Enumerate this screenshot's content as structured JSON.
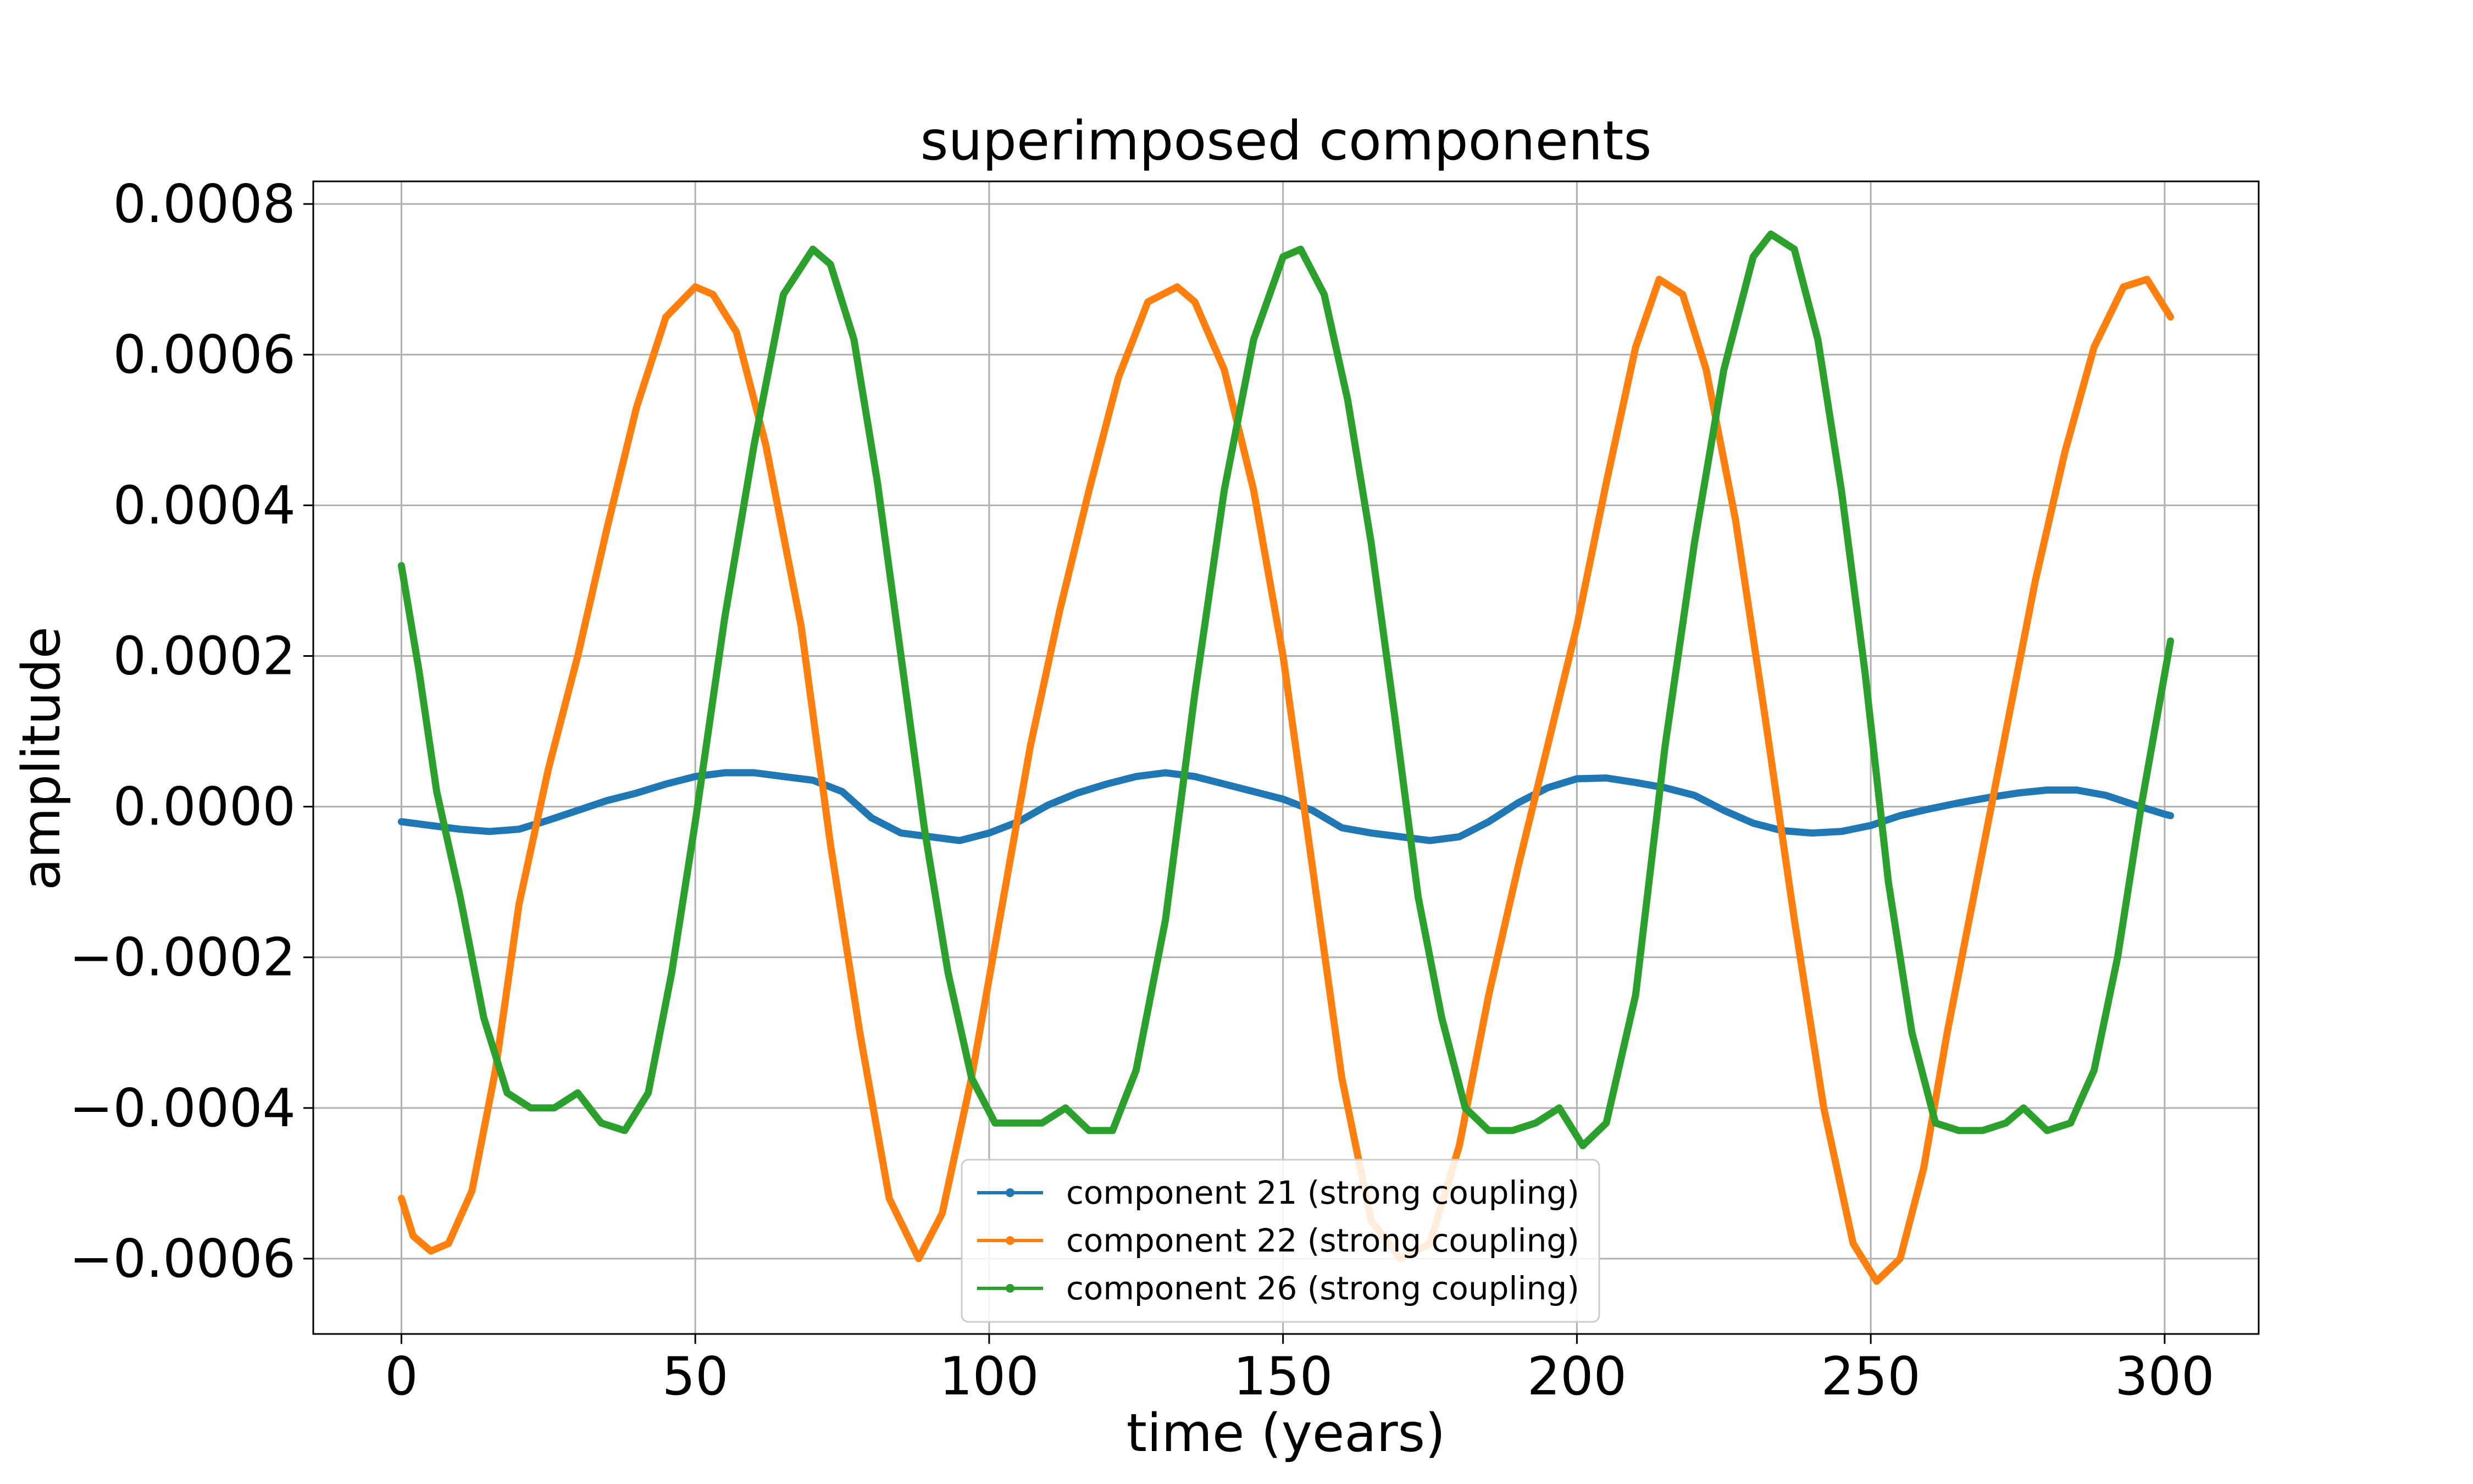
{
  "chart_data": {
    "type": "line",
    "title": "superimposed components",
    "xlabel": "time (years)",
    "ylabel": "amplitude",
    "xlim": [
      -15,
      316
    ],
    "ylim": [
      -0.0007,
      0.00083
    ],
    "xticks": [
      0,
      50,
      100,
      150,
      200,
      250,
      300
    ],
    "xtick_labels": [
      "0",
      "50",
      "100",
      "150",
      "200",
      "250",
      "300"
    ],
    "yticks": [
      -0.0006,
      -0.0004,
      -0.0002,
      0.0,
      0.0002,
      0.0004,
      0.0006,
      0.0008
    ],
    "ytick_labels": [
      "−0.0006",
      "−0.0004",
      "−0.0002",
      "0.0000",
      "0.0002",
      "0.0004",
      "0.0006",
      "0.0008"
    ],
    "grid": true,
    "legend_position": "lower-center",
    "series": [
      {
        "name": "component 21 (strong coupling)",
        "color": "#1f77b4",
        "x": [
          0,
          5,
          10,
          15,
          20,
          25,
          30,
          35,
          40,
          45,
          50,
          55,
          60,
          65,
          70,
          75,
          80,
          85,
          90,
          95,
          100,
          105,
          110,
          115,
          120,
          125,
          130,
          135,
          140,
          145,
          150,
          155,
          160,
          165,
          170,
          175,
          180,
          185,
          190,
          195,
          200,
          205,
          210,
          215,
          220,
          225,
          230,
          235,
          240,
          245,
          250,
          255,
          260,
          265,
          270,
          275,
          280,
          285,
          290,
          295,
          300,
          301
        ],
        "y": [
          -2e-05,
          -2.5e-05,
          -3e-05,
          -3.3e-05,
          -3e-05,
          -1.8e-05,
          -5e-06,
          8e-06,
          1.8e-05,
          3e-05,
          4e-05,
          4.5e-05,
          4.5e-05,
          4e-05,
          3.5e-05,
          2e-05,
          -1.5e-05,
          -3.5e-05,
          -4e-05,
          -4.5e-05,
          -3.5e-05,
          -2e-05,
          2e-06,
          1.8e-05,
          3e-05,
          4e-05,
          4.5e-05,
          4e-05,
          3e-05,
          2e-05,
          1e-05,
          -5e-06,
          -2.8e-05,
          -3.5e-05,
          -4e-05,
          -4.5e-05,
          -4e-05,
          -2e-05,
          5e-06,
          2.5e-05,
          3.7e-05,
          3.8e-05,
          3.2e-05,
          2.5e-05,
          1.5e-05,
          -5e-06,
          -2.2e-05,
          -3.2e-05,
          -3.5e-05,
          -3.3e-05,
          -2.5e-05,
          -1.2e-05,
          -3e-06,
          5e-06,
          1.2e-05,
          1.8e-05,
          2.2e-05,
          2.2e-05,
          1.5e-05,
          2e-06,
          -1e-05,
          -1.2e-05
        ]
      },
      {
        "name": "component 22 (strong coupling)",
        "color": "#ff7f0e",
        "x": [
          0,
          2,
          5,
          8,
          12,
          16,
          20,
          25,
          30,
          35,
          40,
          45,
          50,
          53,
          57,
          62,
          68,
          73,
          78,
          83,
          88,
          92,
          97,
          102,
          107,
          112,
          117,
          122,
          127,
          132,
          135,
          140,
          145,
          150,
          155,
          160,
          165,
          170,
          175,
          180,
          185,
          190,
          195,
          200,
          205,
          210,
          214,
          218,
          222,
          227,
          232,
          237,
          242,
          247,
          251,
          255,
          259,
          263,
          268,
          273,
          278,
          283,
          288,
          293,
          297,
          301
        ],
        "y": [
          -0.00052,
          -0.00057,
          -0.00059,
          -0.00058,
          -0.00051,
          -0.00035,
          -0.00013,
          5e-05,
          0.0002,
          0.00037,
          0.00053,
          0.00065,
          0.00069,
          0.00068,
          0.00063,
          0.00048,
          0.00024,
          -5e-05,
          -0.0003,
          -0.00052,
          -0.0006,
          -0.00054,
          -0.00036,
          -0.00014,
          8e-05,
          0.00026,
          0.00042,
          0.00057,
          0.00067,
          0.00069,
          0.00067,
          0.00058,
          0.00042,
          0.0002,
          -8e-05,
          -0.00036,
          -0.00055,
          -0.0006,
          -0.00058,
          -0.00045,
          -0.00025,
          -8e-05,
          8e-05,
          0.00024,
          0.00043,
          0.00061,
          0.0007,
          0.00068,
          0.00058,
          0.00038,
          0.00012,
          -0.00015,
          -0.0004,
          -0.00058,
          -0.00063,
          -0.0006,
          -0.00048,
          -0.0003,
          -0.0001,
          0.0001,
          0.0003,
          0.00047,
          0.00061,
          0.00069,
          0.0007,
          0.00065
        ]
      },
      {
        "name": "component 26 (strong coupling)",
        "color": "#2ca02c",
        "x": [
          0,
          3,
          6,
          10,
          14,
          18,
          22,
          26,
          30,
          34,
          38,
          42,
          46,
          50,
          55,
          60,
          65,
          70,
          73,
          77,
          81,
          85,
          89,
          93,
          97,
          101,
          105,
          109,
          113,
          117,
          121,
          125,
          130,
          135,
          140,
          145,
          150,
          153,
          157,
          161,
          165,
          169,
          173,
          177,
          181,
          185,
          189,
          193,
          197,
          201,
          205,
          210,
          215,
          220,
          225,
          230,
          233,
          237,
          241,
          245,
          249,
          253,
          257,
          261,
          265,
          269,
          273,
          276,
          280,
          284,
          288,
          292,
          296,
          301
        ],
        "y": [
          0.00032,
          0.00018,
          2e-05,
          -0.00012,
          -0.00028,
          -0.00038,
          -0.0004,
          -0.0004,
          -0.00038,
          -0.00042,
          -0.00043,
          -0.00038,
          -0.00022,
          -2e-05,
          0.00025,
          0.00048,
          0.00068,
          0.00074,
          0.00072,
          0.00062,
          0.00043,
          0.0002,
          -3e-05,
          -0.00022,
          -0.00036,
          -0.00042,
          -0.00042,
          -0.00042,
          -0.0004,
          -0.00043,
          -0.00043,
          -0.00035,
          -0.00015,
          0.00015,
          0.00042,
          0.00062,
          0.00073,
          0.00074,
          0.00068,
          0.00054,
          0.00035,
          0.00012,
          -0.00012,
          -0.00028,
          -0.0004,
          -0.00043,
          -0.00043,
          -0.00042,
          -0.0004,
          -0.00045,
          -0.00042,
          -0.00025,
          8e-05,
          0.00035,
          0.00058,
          0.00073,
          0.00076,
          0.00074,
          0.00062,
          0.00042,
          0.00018,
          -0.0001,
          -0.0003,
          -0.00042,
          -0.00043,
          -0.00043,
          -0.00042,
          -0.0004,
          -0.00043,
          -0.00042,
          -0.00035,
          -0.0002,
          0.0,
          0.00022
        ]
      }
    ]
  }
}
